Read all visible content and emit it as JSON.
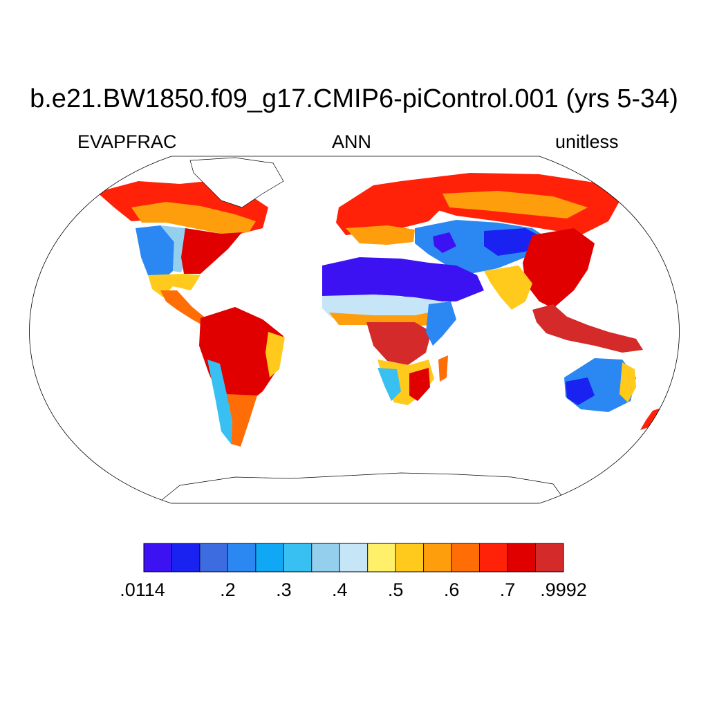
{
  "title": "b.e21.BW1850.f09_g17.CMIP6-piControl.001 (yrs 5-34)",
  "subtitle_left": "EVAPFRAC",
  "subtitle_center": "ANN",
  "subtitle_right": "unitless",
  "colorbar": {
    "colors": [
      "#3d12f2",
      "#1a22f2",
      "#3d6be0",
      "#2b88f2",
      "#10a8f5",
      "#38c0f2",
      "#95cfee",
      "#c6e6f8",
      "#fff06a",
      "#ffca1c",
      "#ff9e0c",
      "#ff6e06",
      "#ff2208",
      "#e00000",
      "#d42a2a"
    ],
    "labels": [
      ".0114",
      ".2",
      ".3",
      ".4",
      ".5",
      ".6",
      ".7",
      ".9992"
    ]
  },
  "palette_semantics": {
    "very_dry": "#3d12f2",
    "dry": "#2b88f2",
    "moderate": "#c6e6f8",
    "mid": "#ffca1c",
    "wet": "#ff6e06",
    "very_wet": "#d42a2a"
  }
}
